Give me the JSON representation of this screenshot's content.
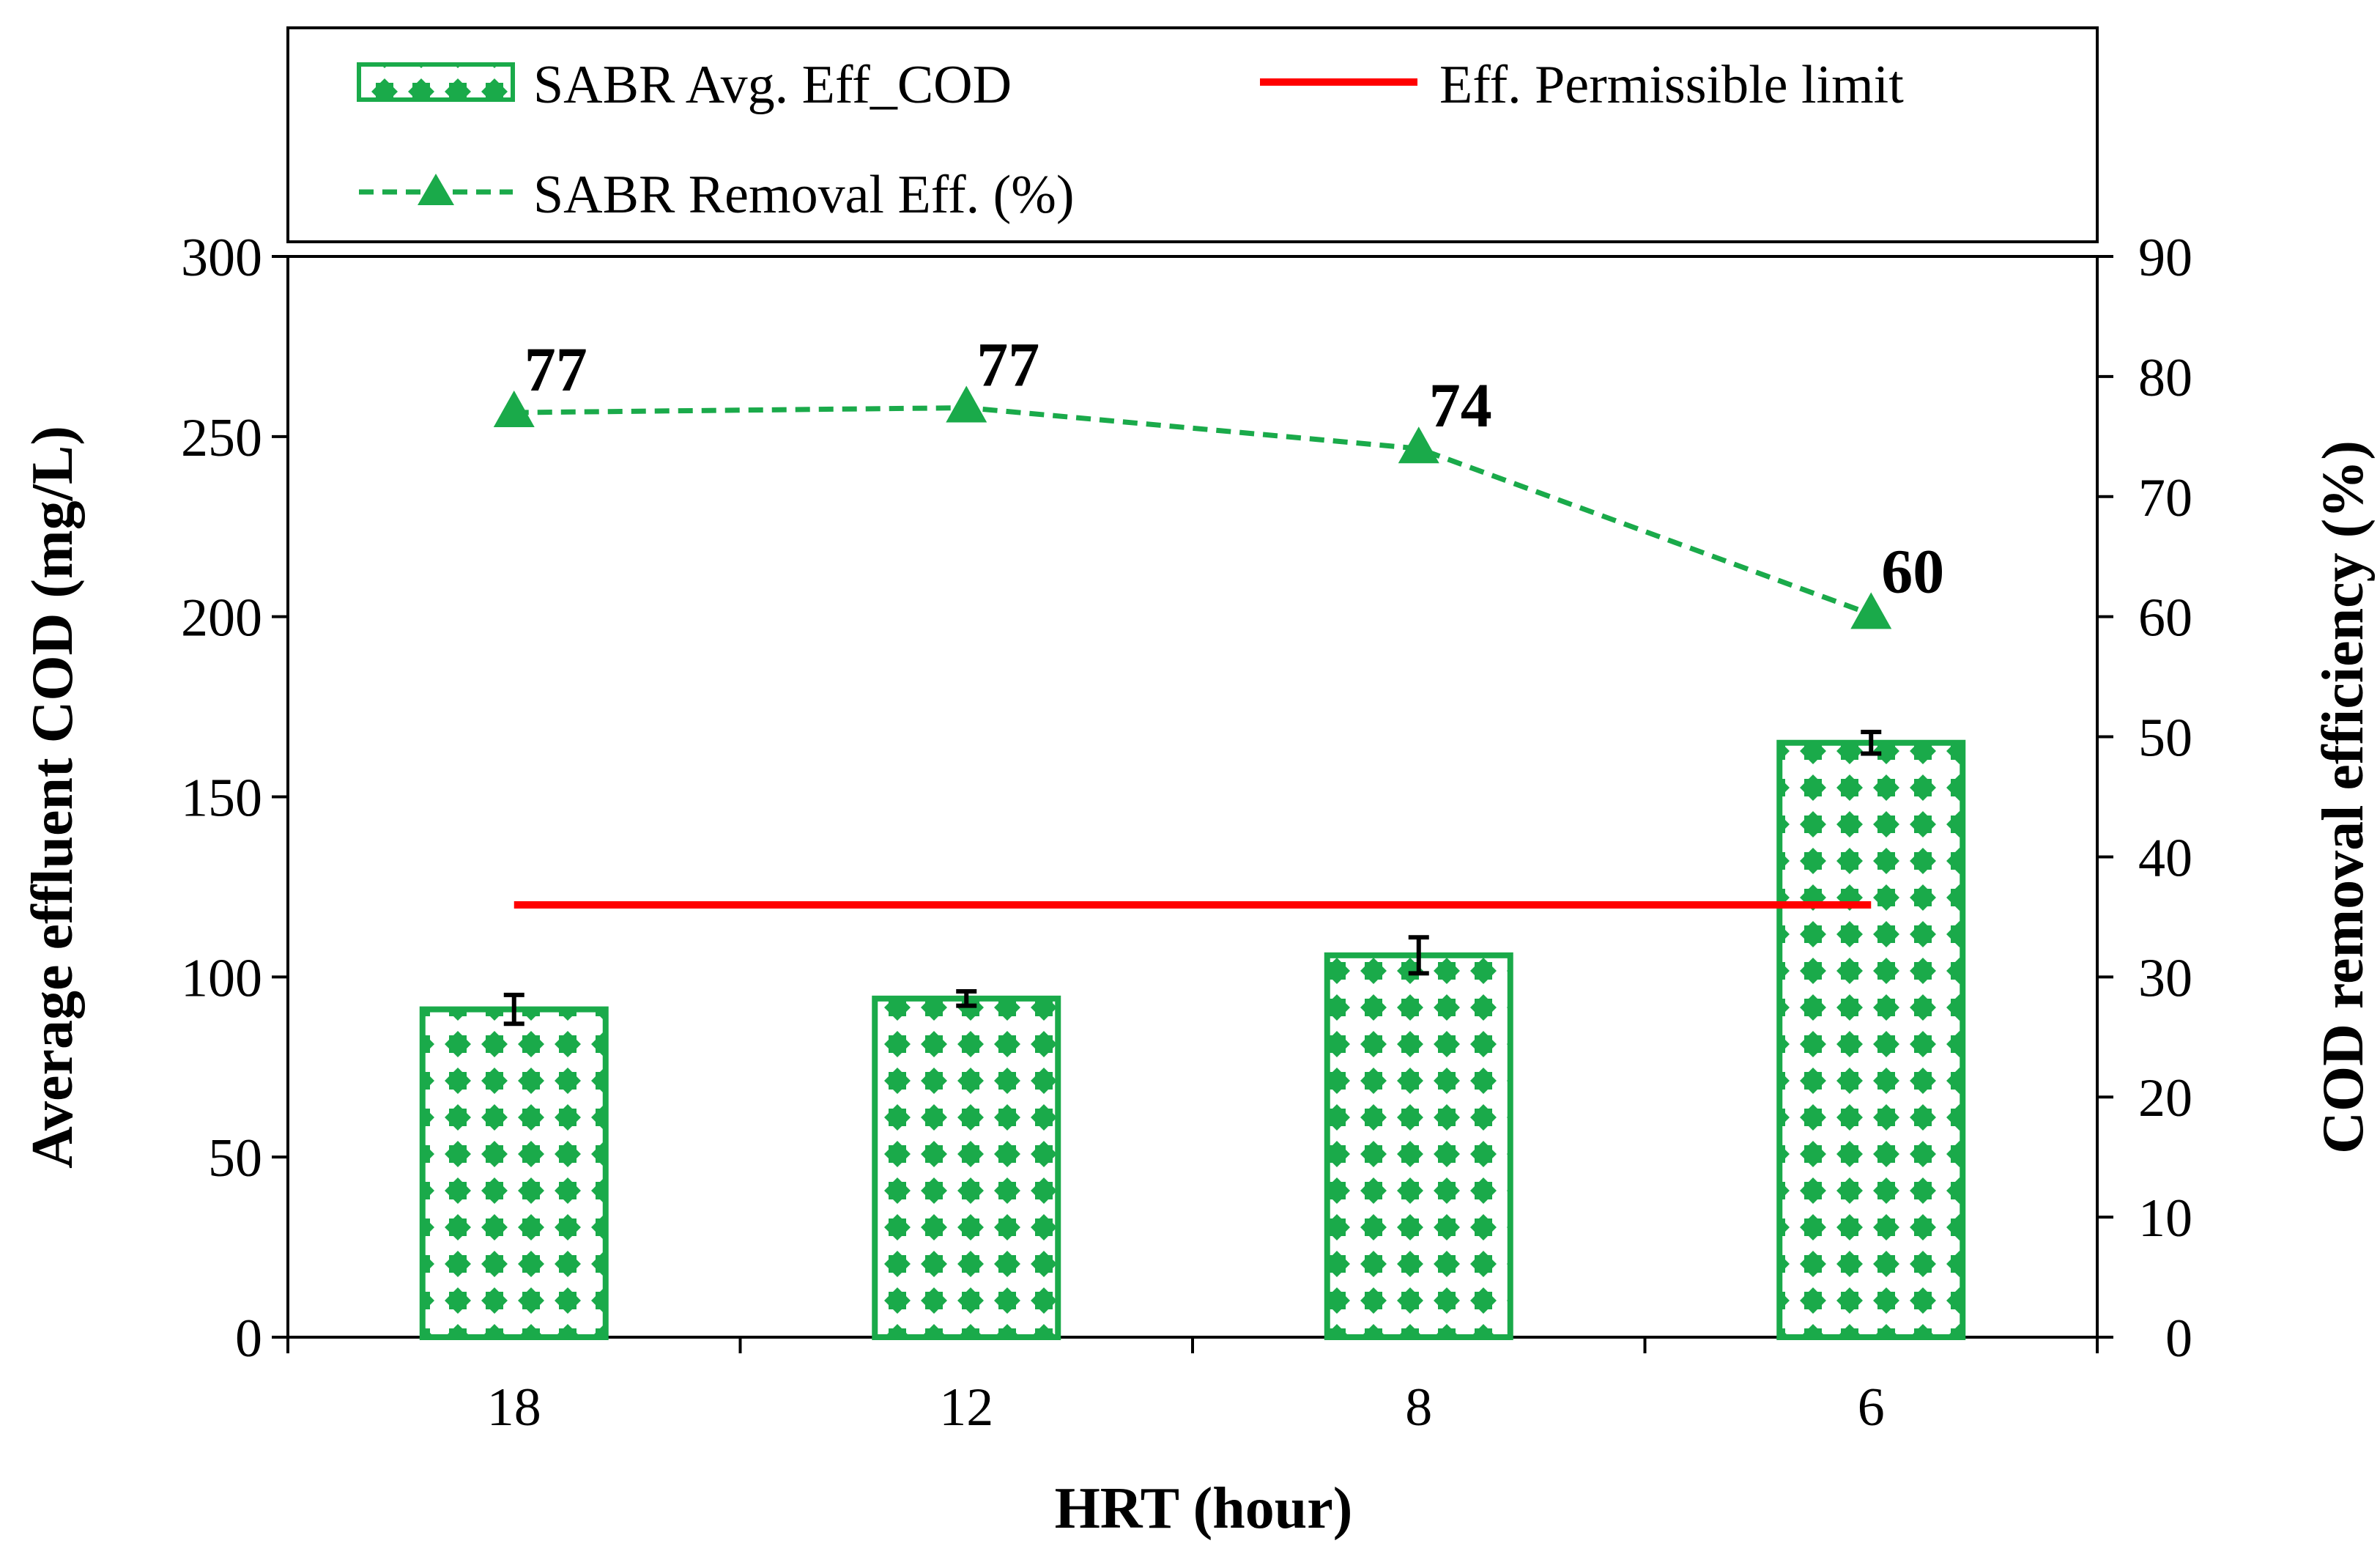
{
  "chart_data": {
    "type": "bar",
    "xlabel": "HRT (hour)",
    "ylabel": "Average effluent COD (mg/L)",
    "y2label": "COD removal efficiency (%)",
    "categories": [
      "18",
      "12",
      "8",
      "6"
    ],
    "ylim": [
      0,
      300
    ],
    "y2lim": [
      0,
      90
    ],
    "yticks": [
      "0",
      "50",
      "100",
      "150",
      "200",
      "250",
      "300"
    ],
    "y2ticks": [
      "0",
      "10",
      "20",
      "30",
      "40",
      "50",
      "60",
      "70",
      "80",
      "90"
    ],
    "series": [
      {
        "name": "SABR Avg. Eff_COD",
        "kind": "bar",
        "axis": "left",
        "values": [
          91,
          94,
          106,
          165
        ],
        "errors": [
          4,
          2,
          5,
          3
        ],
        "color": "#1aaa4a"
      },
      {
        "name": "Eff. Permissible limit",
        "kind": "line",
        "axis": "left",
        "values": [
          120,
          120,
          120,
          120
        ],
        "color": "#ff0000"
      },
      {
        "name": "SABR Removal Eff. (%)",
        "kind": "line-dashed-triangle",
        "axis": "right",
        "values": [
          77,
          77.4,
          74,
          60.2
        ],
        "labels": [
          "77",
          "77",
          "74",
          "60"
        ],
        "color": "#1aaa4a"
      }
    ],
    "legend": {
      "position": "top",
      "items": [
        "SABR Avg. Eff_COD",
        "Eff. Permissible limit",
        "SABR Removal Eff. (%)"
      ]
    }
  }
}
